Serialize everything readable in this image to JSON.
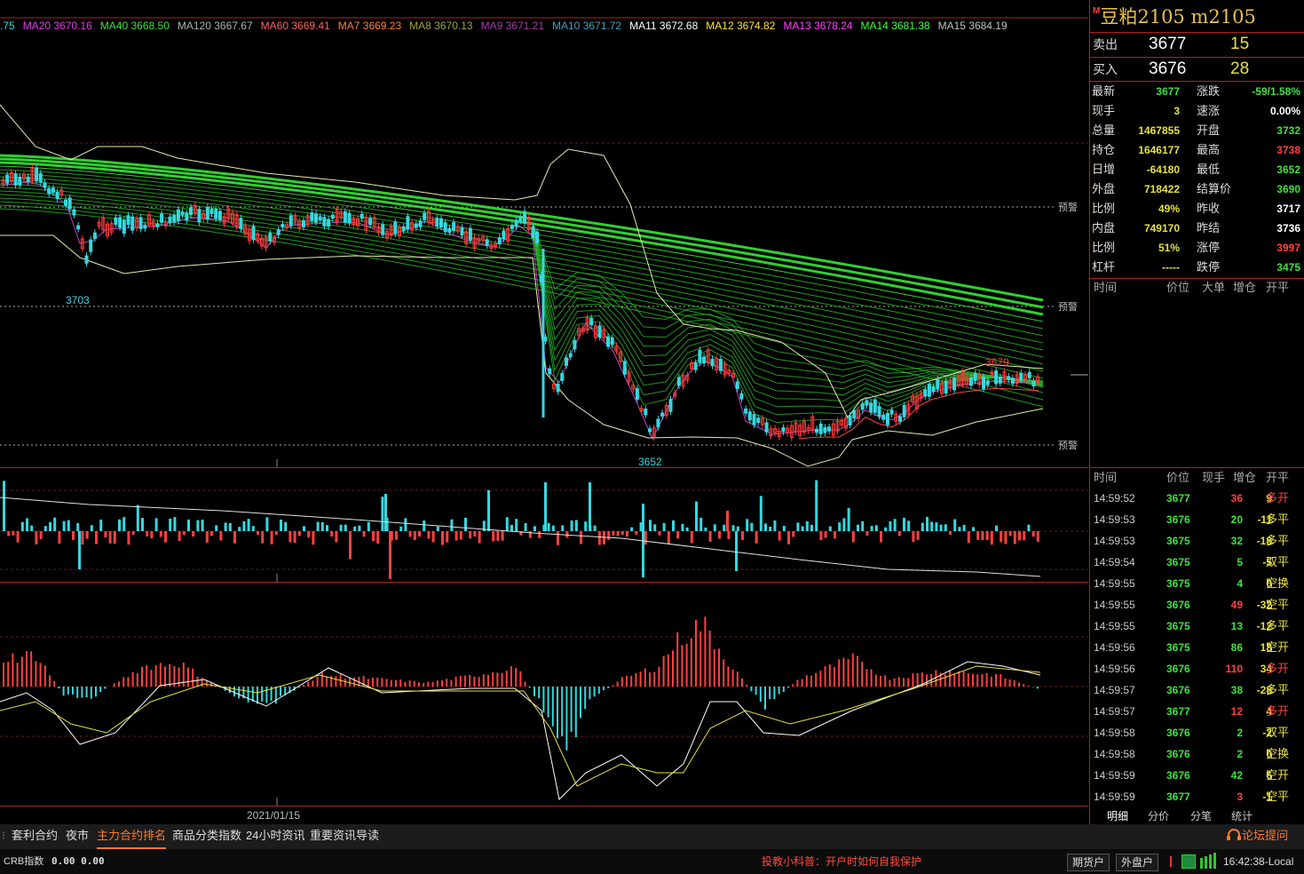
{
  "ma_indicators": [
    {
      "name": "",
      "value": ".75",
      "color": "#34d8e0"
    },
    {
      "name": "MA20",
      "value": "3670.16",
      "color": "#e040e0"
    },
    {
      "name": "MA40",
      "value": "3668.50",
      "color": "#40e040"
    },
    {
      "name": "MA120",
      "value": "3667.67",
      "color": "#b0b0b0"
    },
    {
      "name": "MA60",
      "value": "3669.41",
      "color": "#ff6060"
    },
    {
      "name": "MA7",
      "value": "3669.23",
      "color": "#ff8040"
    },
    {
      "name": "MA8",
      "value": "3670.13",
      "color": "#a0a040"
    },
    {
      "name": "MA9",
      "value": "3671.21",
      "color": "#a040a0"
    },
    {
      "name": "MA10",
      "value": "3671.72",
      "color": "#40a0c0"
    },
    {
      "name": "MA11",
      "value": "3672.68",
      "color": "#ffffff"
    },
    {
      "name": "MA12",
      "value": "3674.82",
      "color": "#ffe040"
    },
    {
      "name": "MA13",
      "value": "3678.24",
      "color": "#ff40ff"
    },
    {
      "name": "MA14",
      "value": "3681.38",
      "color": "#40ff40"
    },
    {
      "name": "MA15",
      "value": "3684.19",
      "color": "#c0c0c0"
    }
  ],
  "chart": {
    "high_label": "3703",
    "low_label": "3652",
    "recent_label": "3679",
    "alert_label": "预警",
    "date_label": "2021/01/15"
  },
  "panel": {
    "contract": "豆粕2105  m2105",
    "market_icon": "M",
    "sell": {
      "label": "卖出",
      "price": "3677",
      "volume": "15"
    },
    "buy": {
      "label": "买入",
      "price": "3676",
      "volume": "28"
    },
    "stats": [
      {
        "l1": "最新",
        "v1": "3677",
        "c1": "#40e040",
        "l2": "涨跌",
        "v2": "-59/1.58%",
        "c2": "#40e040"
      },
      {
        "l1": "现手",
        "v1": "3",
        "c1": "#e6e040",
        "l2": "速涨",
        "v2": "0.00%",
        "c2": "#ffffff"
      },
      {
        "l1": "总量",
        "v1": "1467855",
        "c1": "#e6e040",
        "l2": "开盘",
        "v2": "3732",
        "c2": "#40e040"
      },
      {
        "l1": "持仓",
        "v1": "1646177",
        "c1": "#e6e040",
        "l2": "最高",
        "v2": "3738",
        "c2": "#ff4040"
      },
      {
        "l1": "日增",
        "v1": "-64180",
        "c1": "#e6e040",
        "l2": "最低",
        "v2": "3652",
        "c2": "#40e040"
      },
      {
        "l1": "外盘",
        "v1": "718422",
        "c1": "#e6e040",
        "l2": "结算价",
        "v2": "3690",
        "c2": "#40e040"
      },
      {
        "l1": "比例",
        "v1": "49%",
        "c1": "#e6e040",
        "l2": "昨收",
        "v2": "3717",
        "c2": "#ffffff"
      },
      {
        "l1": "内盘",
        "v1": "749170",
        "c1": "#e6e040",
        "l2": "昨结",
        "v2": "3736",
        "c2": "#ffffff"
      },
      {
        "l1": "比例",
        "v1": "51%",
        "c1": "#e6e040",
        "l2": "涨停",
        "v2": "3997",
        "c2": "#ff4040"
      },
      {
        "l1": "杠杆",
        "v1": "-----",
        "c1": "#e6e040",
        "l2": "跌停",
        "v2": "3475",
        "c2": "#40e040"
      }
    ],
    "big_header": {
      "time": "时间",
      "price": "价位",
      "big": "大单",
      "oi": "增仓",
      "type": "开平"
    },
    "tick_header": {
      "time": "时间",
      "price": "价位",
      "qty": "现手",
      "oi": "增仓",
      "type": "开平"
    },
    "ticks": [
      {
        "time": "14:59:52",
        "price": "3677",
        "pc": "#40e040",
        "qty": "36",
        "qc": "#ff4040",
        "oi": "9",
        "type": "多开",
        "tc": "#ff4040"
      },
      {
        "time": "14:59:53",
        "price": "3676",
        "pc": "#40e040",
        "qty": "20",
        "qc": "#40e040",
        "oi": "-11",
        "type": "多平",
        "tc": "#e6e040"
      },
      {
        "time": "14:59:53",
        "price": "3675",
        "pc": "#40e040",
        "qty": "32",
        "qc": "#40e040",
        "oi": "-18",
        "type": "多平",
        "tc": "#e6e040"
      },
      {
        "time": "14:59:54",
        "price": "3675",
        "pc": "#40e040",
        "qty": "5",
        "qc": "#40e040",
        "oi": "-5",
        "type": "双平",
        "tc": "#e6e040"
      },
      {
        "time": "14:59:55",
        "price": "3675",
        "pc": "#40e040",
        "qty": "4",
        "qc": "#40e040",
        "oi": "0",
        "type": "空换",
        "tc": "#e6e040"
      },
      {
        "time": "14:59:55",
        "price": "3676",
        "pc": "#40e040",
        "qty": "49",
        "qc": "#ff4040",
        "oi": "-32",
        "type": "空平",
        "tc": "#e6e040"
      },
      {
        "time": "14:59:55",
        "price": "3675",
        "pc": "#40e040",
        "qty": "13",
        "qc": "#40e040",
        "oi": "-12",
        "type": "多平",
        "tc": "#e6e040"
      },
      {
        "time": "14:59:56",
        "price": "3675",
        "pc": "#40e040",
        "qty": "86",
        "qc": "#40e040",
        "oi": "18",
        "type": "空开",
        "tc": "#e6e040"
      },
      {
        "time": "14:59:56",
        "price": "3676",
        "pc": "#40e040",
        "qty": "110",
        "qc": "#ff4040",
        "oi": "34",
        "type": "多开",
        "tc": "#ff4040"
      },
      {
        "time": "14:59:57",
        "price": "3676",
        "pc": "#40e040",
        "qty": "38",
        "qc": "#40e040",
        "oi": "-28",
        "type": "多平",
        "tc": "#e6e040"
      },
      {
        "time": "14:59:57",
        "price": "3677",
        "pc": "#40e040",
        "qty": "12",
        "qc": "#ff4040",
        "oi": "4",
        "type": "多开",
        "tc": "#ff4040"
      },
      {
        "time": "14:59:58",
        "price": "3676",
        "pc": "#40e040",
        "qty": "2",
        "qc": "#40e040",
        "oi": "-2",
        "type": "双平",
        "tc": "#e6e040"
      },
      {
        "time": "14:59:58",
        "price": "3676",
        "pc": "#40e040",
        "qty": "2",
        "qc": "#40e040",
        "oi": "0",
        "type": "空换",
        "tc": "#e6e040"
      },
      {
        "time": "14:59:59",
        "price": "3676",
        "pc": "#40e040",
        "qty": "42",
        "qc": "#40e040",
        "oi": "6",
        "type": "空开",
        "tc": "#e6e040"
      },
      {
        "time": "14:59:59",
        "price": "3677",
        "pc": "#40e040",
        "qty": "3",
        "qc": "#ff4040",
        "oi": "-1",
        "type": "空平",
        "tc": "#e6e040"
      }
    ],
    "tabs": [
      "明细",
      "分价",
      "分笔",
      "统计"
    ]
  },
  "bottom_tabs": [
    "套利合约",
    "夜市",
    "主力合约排名",
    "商品分类指数",
    "24小时资讯",
    "重要资讯导读"
  ],
  "active_tab": "主力合约排名",
  "forum_link": "论坛提问",
  "status": {
    "index_label": "CRB指数",
    "index_values": "0.00  0.00",
    "promo": "投教小科普：开户时如何自我保护",
    "futures_btn": "期货户",
    "outer_btn": "外盘户",
    "clock": "16:42:38-Local"
  }
}
